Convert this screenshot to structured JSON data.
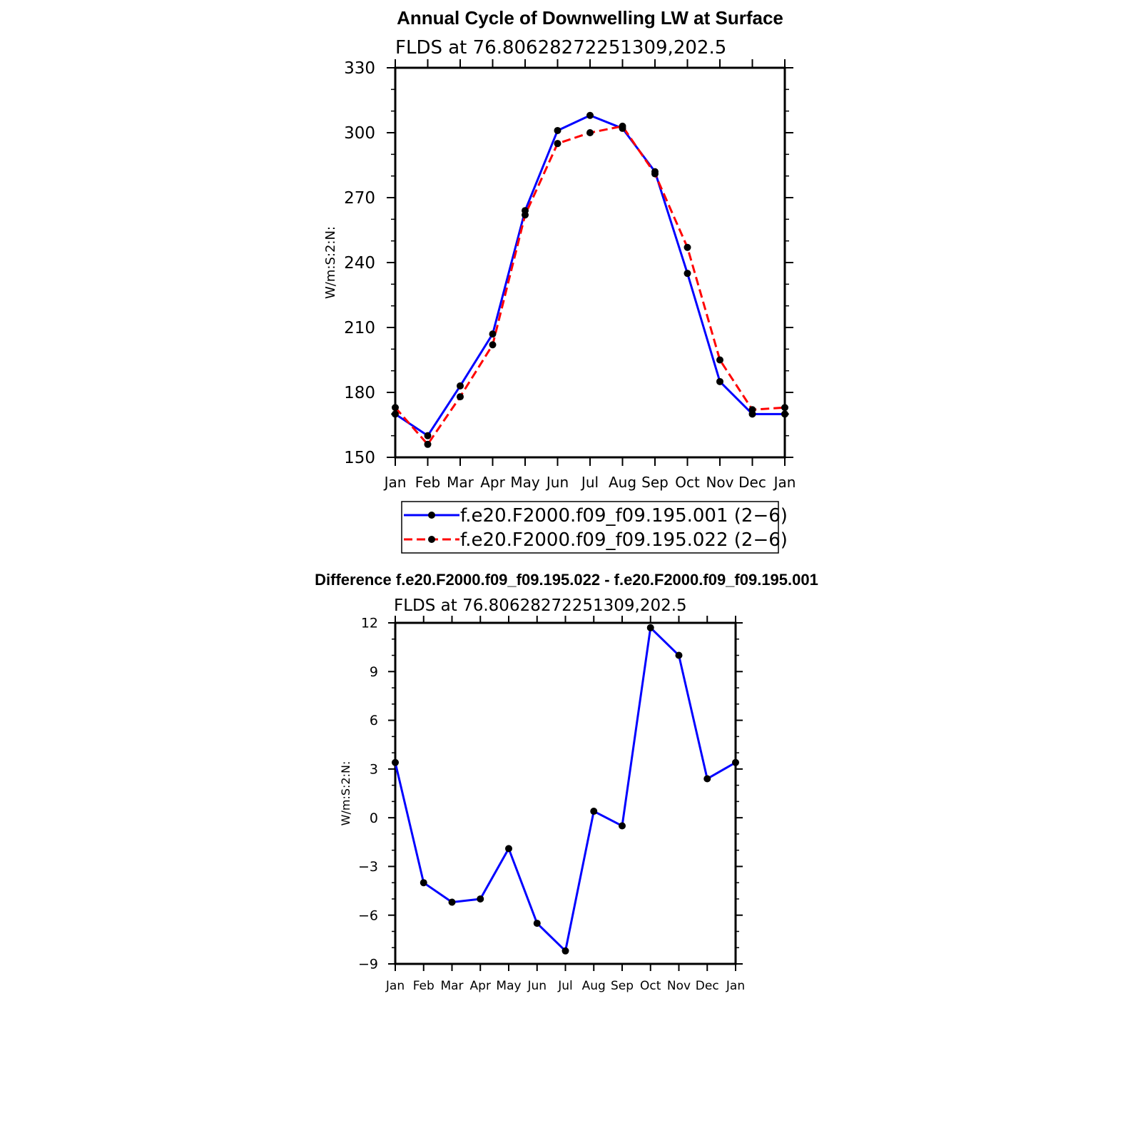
{
  "chart_data": [
    {
      "type": "line",
      "title": "Annual Cycle of Downwelling LW at Surface",
      "subtitle": "FLDS  at  76.80628272251309,202.5",
      "ylabel": "W/m:S:2:N:",
      "categories": [
        "Jan",
        "Feb",
        "Mar",
        "Apr",
        "May",
        "Jun",
        "Jul",
        "Aug",
        "Sep",
        "Oct",
        "Nov",
        "Dec",
        "Jan"
      ],
      "ylim": [
        150,
        330
      ],
      "yticks": [
        "150",
        "180",
        "210",
        "240",
        "270",
        "300",
        "330"
      ],
      "series": [
        {
          "name": "f.e20.F2000.f09_f09.195.001 (2−6)",
          "values": [
            170,
            160,
            183,
            207,
            264,
            301,
            308,
            302,
            282,
            235,
            185,
            170,
            170
          ],
          "color": "#0000ff",
          "dash": "solid"
        },
        {
          "name": "f.e20.F2000.f09_f09.195.022 (2−6)",
          "values": [
            173,
            156,
            178,
            202,
            262,
            295,
            300,
            303,
            281,
            247,
            195,
            172,
            173
          ],
          "color": "#ff0000",
          "dash": "dashed"
        }
      ],
      "legend": "below"
    },
    {
      "type": "line",
      "title": "Difference f.e20.F2000.f09_f09.195.022 - f.e20.F2000.f09_f09.195.001",
      "subtitle": "FLDS  at  76.80628272251309,202.5",
      "ylabel": "W/m:S:2:N:",
      "categories": [
        "Jan",
        "Feb",
        "Mar",
        "Apr",
        "May",
        "Jun",
        "Jul",
        "Aug",
        "Sep",
        "Oct",
        "Nov",
        "Dec",
        "Jan"
      ],
      "ylim": [
        -9,
        12
      ],
      "yticks": [
        "−9",
        "−6",
        "−3",
        "0",
        "3",
        "6",
        "9",
        "12"
      ],
      "series": [
        {
          "values": [
            3.4,
            -4.0,
            -5.2,
            -5.0,
            -1.9,
            -6.5,
            -8.2,
            0.4,
            -0.5,
            11.7,
            10.0,
            2.4,
            3.4
          ],
          "color": "#0000ff",
          "dash": "solid"
        }
      ]
    }
  ]
}
